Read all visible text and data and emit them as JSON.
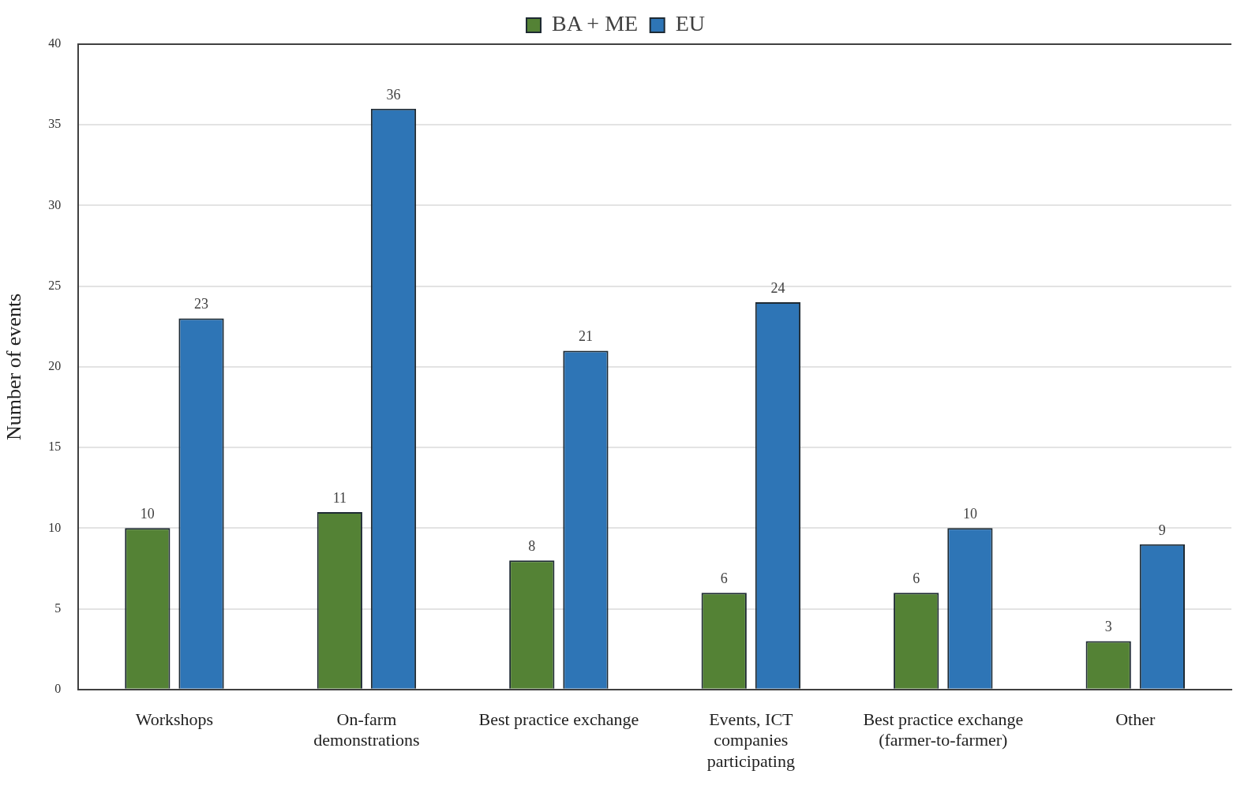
{
  "chart_data": {
    "type": "bar",
    "ylabel": "Number of events",
    "categories": [
      "Workshops",
      "On-farm demonstrations",
      "Best practice exchange",
      "Events, ICT companies participating",
      "Best practice exchange (farmer-to-farmer)",
      "Other"
    ],
    "series": [
      {
        "name": "BA + ME",
        "color": "#548235",
        "values": [
          10,
          11,
          8,
          6,
          6,
          3
        ]
      },
      {
        "name": "EU",
        "color": "#2e75b6",
        "values": [
          23,
          36,
          21,
          24,
          10,
          9
        ]
      }
    ],
    "ylim": [
      0,
      40
    ],
    "yticks": [
      0,
      5,
      10,
      15,
      20,
      25,
      30,
      35,
      40
    ],
    "grid": "y",
    "legend": "top",
    "data_labels": true
  }
}
